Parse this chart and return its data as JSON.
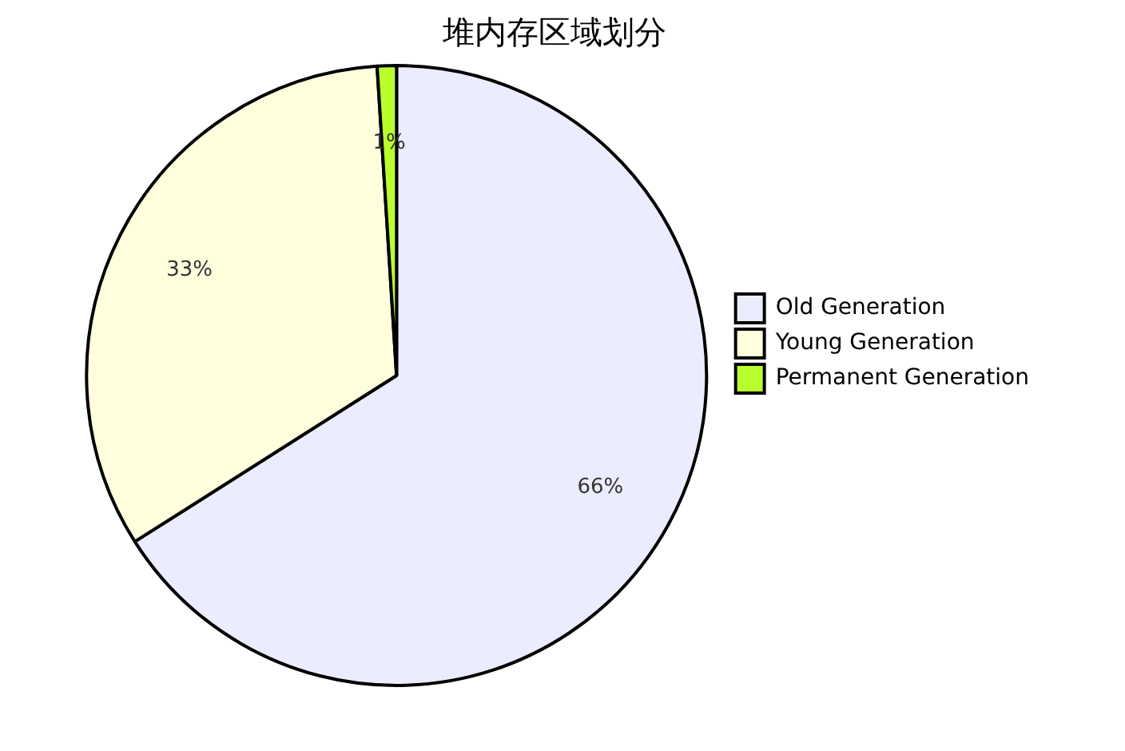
{
  "chart_data": {
    "type": "pie",
    "title": "堆内存区域划分",
    "categories": [
      "Old Generation",
      "Young Generation",
      "Permanent Generation"
    ],
    "values": [
      66,
      33,
      1
    ],
    "value_labels": [
      "66%",
      "33%",
      "1%"
    ],
    "colors": [
      "#ececff",
      "#ffffde",
      "#b9ff2e"
    ],
    "legend": "right"
  }
}
